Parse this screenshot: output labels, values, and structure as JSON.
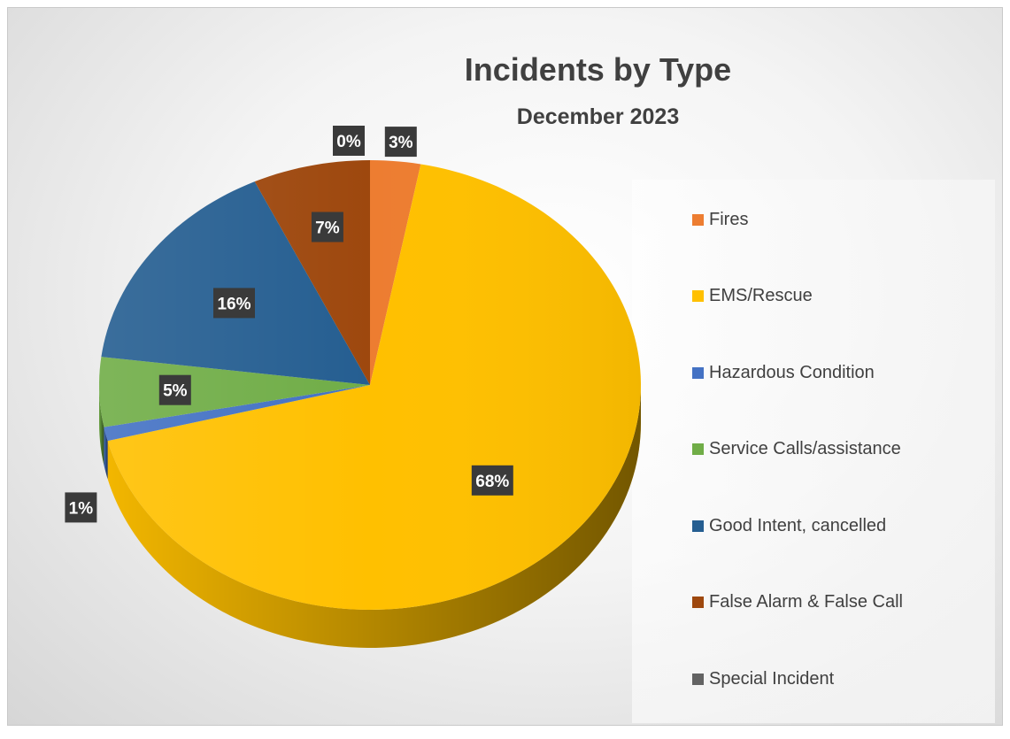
{
  "chart_data": {
    "type": "pie",
    "title": "Incidents by Type",
    "subtitle": "December 2023",
    "legend_position": "right",
    "slices": [
      {
        "name": "Fires",
        "percent": 3,
        "label": "3%",
        "color": "#ED7D31"
      },
      {
        "name": "EMS/Rescue",
        "percent": 68,
        "label": "68%",
        "color": "#FFC000"
      },
      {
        "name": "Hazardous Condition",
        "percent": 1,
        "label": "1%",
        "color": "#4472C4"
      },
      {
        "name": "Service Calls/assistance",
        "percent": 5,
        "label": "5%",
        "color": "#70AD47"
      },
      {
        "name": "Good Intent, cancelled",
        "percent": 16,
        "label": "16%",
        "color": "#255E91"
      },
      {
        "name": "False Alarm & False Call",
        "percent": 7,
        "label": "7%",
        "color": "#9E480E"
      },
      {
        "name": "Special Incident",
        "percent": 0,
        "label": "0%",
        "color": "#636363"
      }
    ]
  }
}
